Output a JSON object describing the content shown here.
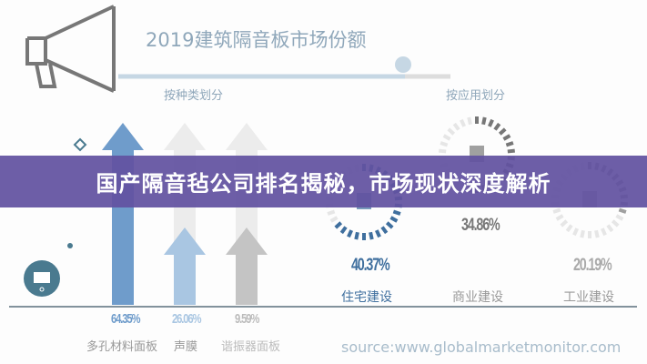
{
  "banner": {
    "title": "国产隔音毡公司排名揭秘，市场现状深度解析"
  },
  "infographic": {
    "title": "2019建筑隔音板市场份额",
    "source": "source:www.globalmarketmonitor.com"
  },
  "chart_data": [
    {
      "type": "bar",
      "title": "按种类划分",
      "categories": [
        "多孔材料面板",
        "声膜",
        "谐振器面板"
      ],
      "values": [
        64.35,
        26.06,
        9.59
      ],
      "value_labels": [
        "64.35%",
        "26.06%",
        "9.59%"
      ],
      "colors": [
        "#6f9ccb",
        "#a9c6e2",
        "#c4c4c4"
      ]
    },
    {
      "type": "pie",
      "title": "按应用划分",
      "categories": [
        "住宅建设",
        "商业建设",
        "工业建设"
      ],
      "values": [
        40.37,
        34.86,
        20.19
      ],
      "value_labels": [
        "40.37%",
        "34.86%",
        "20.19%"
      ],
      "colors": [
        "#3f6f9e",
        "#777777",
        "#a0a0a0"
      ]
    }
  ]
}
